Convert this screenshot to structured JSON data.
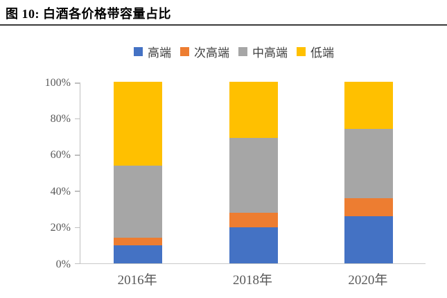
{
  "figure": {
    "title": "图 10:  白酒各价格带容量占比"
  },
  "chart_data": {
    "type": "bar",
    "stacked": true,
    "units": "percent",
    "title": "白酒各价格带容量占比",
    "categories": [
      "2016年",
      "2018年",
      "2020年"
    ],
    "series": [
      {
        "name": "高端",
        "color": "#4472C4",
        "values": [
          10,
          20,
          26
        ]
      },
      {
        "name": "次高端",
        "color": "#ED7D31",
        "values": [
          4,
          8,
          10
        ]
      },
      {
        "name": "中高端",
        "color": "#A6A6A6",
        "values": [
          40,
          41,
          38
        ]
      },
      {
        "name": "低端",
        "color": "#FFC000",
        "values": [
          46,
          31,
          26
        ]
      }
    ],
    "xlabel": "",
    "ylabel": "",
    "ylim": [
      0,
      100
    ],
    "yticks": [
      "0%",
      "20%",
      "40%",
      "60%",
      "80%",
      "100%"
    ],
    "legend_position": "top",
    "grid": false,
    "axis_color": "#bfbfbf",
    "tick_label_color": "#595959"
  }
}
